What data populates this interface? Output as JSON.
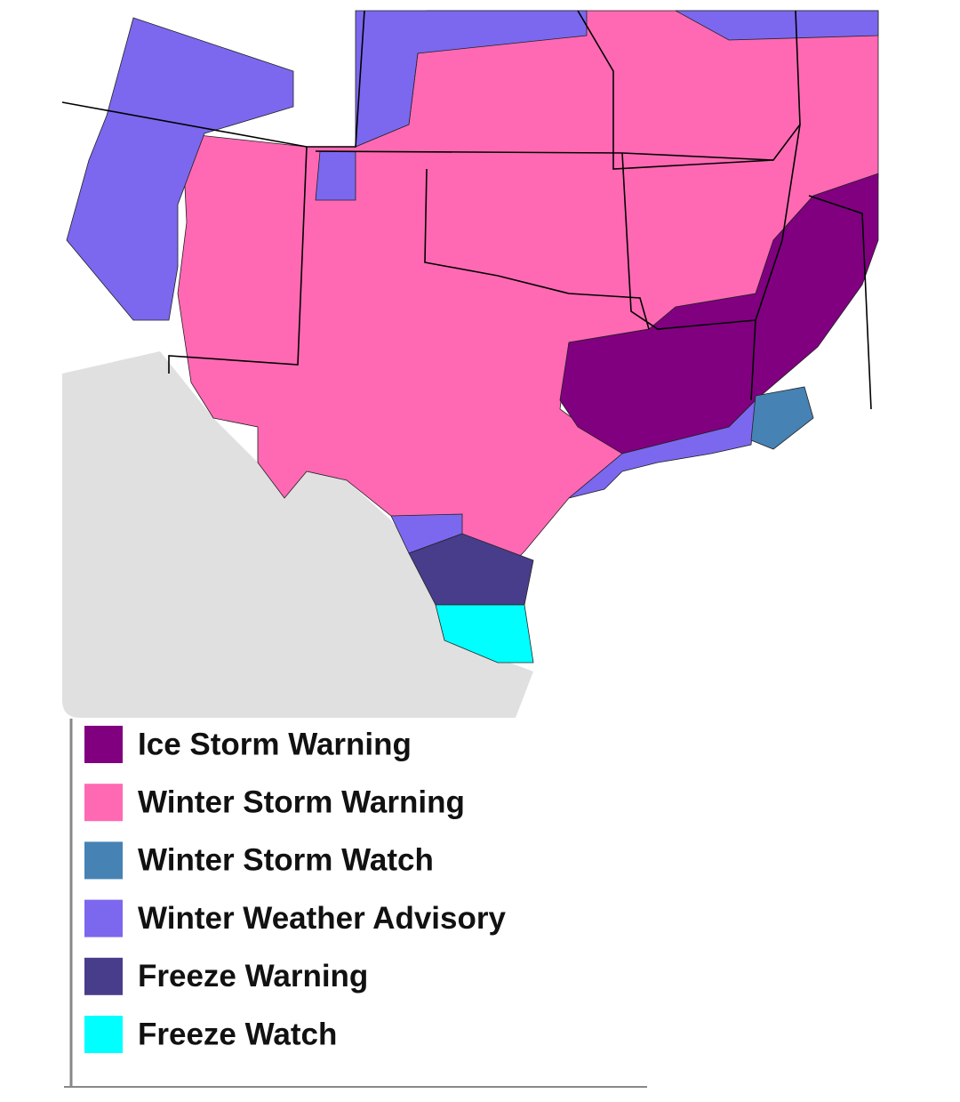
{
  "legend": {
    "items": [
      {
        "label": "Ice Storm Warning",
        "color": "#800080"
      },
      {
        "label": "Winter Storm Warning",
        "color": "#ff69b4"
      },
      {
        "label": "Winter Storm Watch",
        "color": "#4682b4"
      },
      {
        "label": "Winter Weather Advisory",
        "color": "#7b68ee"
      },
      {
        "label": "Freeze Warning",
        "color": "#483d8b"
      },
      {
        "label": "Freeze Watch",
        "color": "#00ffff"
      }
    ]
  }
}
